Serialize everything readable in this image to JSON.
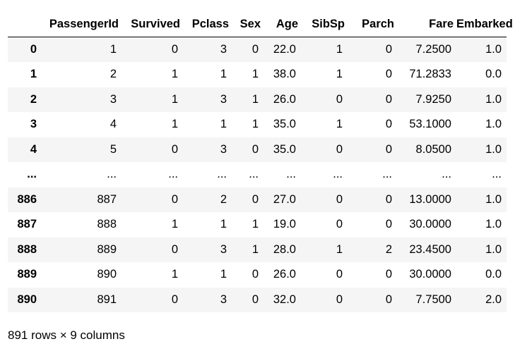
{
  "table": {
    "index_header": "",
    "columns": [
      "PassengerId",
      "Survived",
      "Pclass",
      "Sex",
      "Age",
      "SibSp",
      "Parch",
      "Fare",
      "Embarked"
    ],
    "rows": [
      {
        "index": "0",
        "cells": [
          "1",
          "0",
          "3",
          "0",
          "22.0",
          "1",
          "0",
          "7.2500",
          "1.0"
        ]
      },
      {
        "index": "1",
        "cells": [
          "2",
          "1",
          "1",
          "1",
          "38.0",
          "1",
          "0",
          "71.2833",
          "0.0"
        ]
      },
      {
        "index": "2",
        "cells": [
          "3",
          "1",
          "3",
          "1",
          "26.0",
          "0",
          "0",
          "7.9250",
          "1.0"
        ]
      },
      {
        "index": "3",
        "cells": [
          "4",
          "1",
          "1",
          "1",
          "35.0",
          "1",
          "0",
          "53.1000",
          "1.0"
        ]
      },
      {
        "index": "4",
        "cells": [
          "5",
          "0",
          "3",
          "0",
          "35.0",
          "0",
          "0",
          "8.0500",
          "1.0"
        ]
      },
      {
        "index": "...",
        "cells": [
          "...",
          "...",
          "...",
          "...",
          "...",
          "...",
          "...",
          "...",
          "..."
        ]
      },
      {
        "index": "886",
        "cells": [
          "887",
          "0",
          "2",
          "0",
          "27.0",
          "0",
          "0",
          "13.0000",
          "1.0"
        ]
      },
      {
        "index": "887",
        "cells": [
          "888",
          "1",
          "1",
          "1",
          "19.0",
          "0",
          "0",
          "30.0000",
          "1.0"
        ]
      },
      {
        "index": "888",
        "cells": [
          "889",
          "0",
          "3",
          "1",
          "28.0",
          "1",
          "2",
          "23.4500",
          "1.0"
        ]
      },
      {
        "index": "889",
        "cells": [
          "890",
          "1",
          "1",
          "0",
          "26.0",
          "0",
          "0",
          "30.0000",
          "0.0"
        ]
      },
      {
        "index": "890",
        "cells": [
          "891",
          "0",
          "3",
          "0",
          "32.0",
          "0",
          "0",
          "7.7500",
          "2.0"
        ]
      }
    ]
  },
  "footer": {
    "summary": "891 rows × 9 columns"
  },
  "colors": {
    "striped_row": "#f5f5f5",
    "plain_row": "#ffffff",
    "header_rule": "#000000"
  }
}
